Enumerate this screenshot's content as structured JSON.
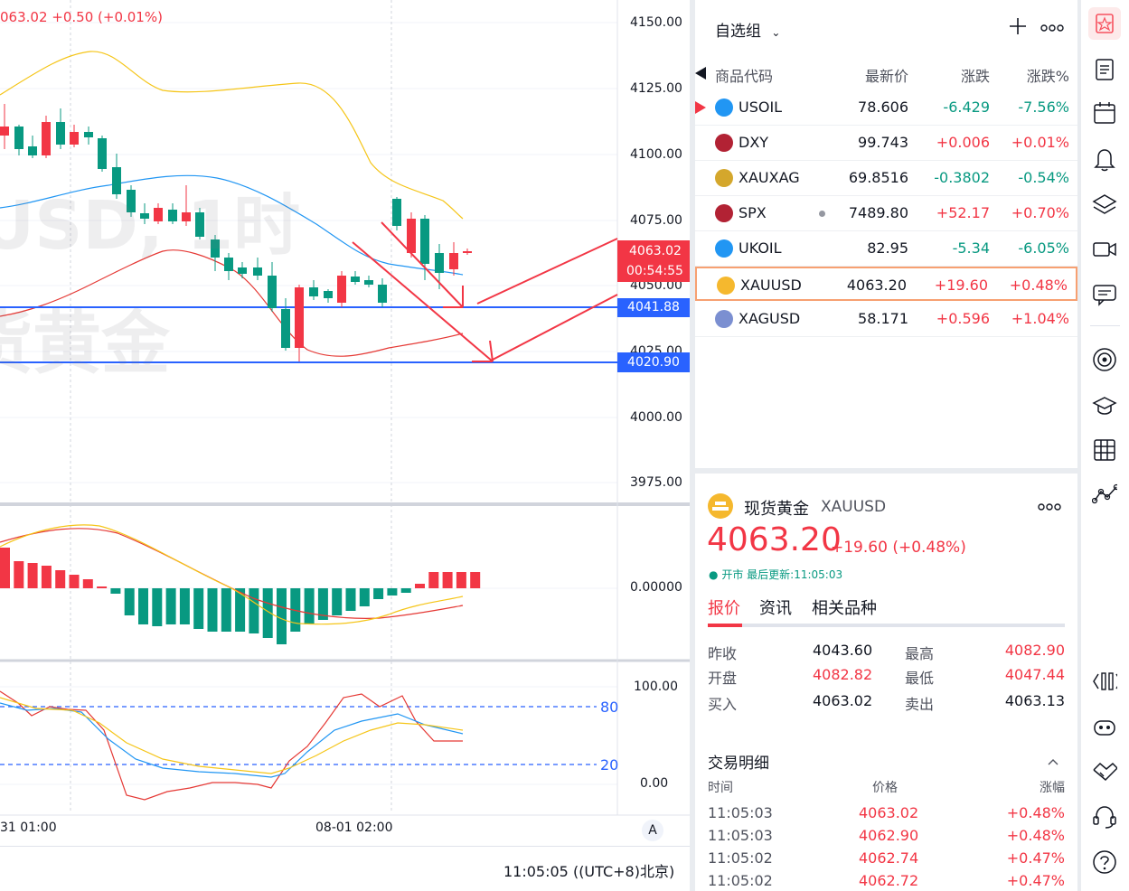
{
  "chart": {
    "header_price": "063.02",
    "header_change": "+0.50",
    "header_change_pct": "(+0.01%)",
    "watermark_symbol": "USD, 1时",
    "watermark_name": "货黄金",
    "price_axis": [
      "4150.00",
      "4125.00",
      "4100.00",
      "4075.00",
      "4050.00",
      "4025.00",
      "4000.00",
      "3975.00"
    ],
    "current_price_label": "4063.02",
    "countdown_label": "00:54:55",
    "level_1": "4041.88",
    "level_2": "4020.90",
    "macd_axis": "0.00000",
    "kdj_axis_top": "100.00",
    "kdj_axis_bottom": "0.00",
    "kdj_level_80": "80",
    "kdj_level_20": "20",
    "time_axis": [
      "31 01:00",
      "08-01 02:00"
    ],
    "auto_scale_button": "A",
    "clock": "11:05:05 ((UTC+8)北京)",
    "colors": {
      "up": "#f23645",
      "down": "#089981",
      "level_line": "#2962ff",
      "annotation": "#f23645",
      "bb_upper": "#f5c518",
      "bb_mid": "#2196f3",
      "bb_lower": "#e53935"
    }
  },
  "watchlist": {
    "title": "自选组",
    "add_icon": "plus-icon",
    "more_icon": "more-icon",
    "columns": {
      "symbol": "商品代码",
      "last": "最新价",
      "change": "涨跌",
      "change_pct": "涨跌%"
    },
    "rows": [
      {
        "symbol": "USOIL",
        "last": "78.606",
        "change": "-6.429",
        "change_pct": "-7.56%",
        "dir": "down",
        "icon": "oil-icon",
        "flag": true
      },
      {
        "symbol": "DXY",
        "last": "99.743",
        "change": "+0.006",
        "change_pct": "+0.01%",
        "dir": "up",
        "icon": "us-flag-icon"
      },
      {
        "symbol": "XAUXAG",
        "last": "69.8516",
        "change": "-0.3802",
        "change_pct": "-0.54%",
        "dir": "down",
        "icon": "gold-silver-icon"
      },
      {
        "symbol": "SPX",
        "last": "7489.80",
        "change": "+52.17",
        "change_pct": "+0.70%",
        "dir": "up",
        "icon": "us-flag-icon",
        "dot": true
      },
      {
        "symbol": "UKOIL",
        "last": "82.95",
        "change": "-5.34",
        "change_pct": "-6.05%",
        "dir": "down",
        "icon": "oil-icon"
      },
      {
        "symbol": "XAUUSD",
        "last": "4063.20",
        "change": "+19.60",
        "change_pct": "+0.48%",
        "dir": "up",
        "icon": "gold-icon",
        "selected": true
      },
      {
        "symbol": "XAGUSD",
        "last": "58.171",
        "change": "+0.596",
        "change_pct": "+1.04%",
        "dir": "up",
        "icon": "silver-icon"
      }
    ]
  },
  "detail": {
    "name": "现货黄金",
    "symbol": "XAUUSD",
    "price": "4063.20",
    "change": "+19.60",
    "change_pct": "(+0.48%)",
    "status": "开市",
    "updated": "最后更新:11:05:03",
    "tabs": [
      "报价",
      "资讯",
      "相关品种"
    ],
    "stats": {
      "prev_close_label": "昨收",
      "prev_close": "4043.60",
      "open_label": "开盘",
      "open": "4082.82",
      "bid_label": "买入",
      "bid": "4063.02",
      "high_label": "最高",
      "high": "4082.90",
      "low_label": "最低",
      "low": "4047.44",
      "ask_label": "卖出",
      "ask": "4063.13"
    },
    "trades_title": "交易明细",
    "trades_columns": {
      "time": "时间",
      "price": "价格",
      "change": "涨幅"
    },
    "trades": [
      {
        "time": "11:05:03",
        "price": "4063.02",
        "change": "+0.48%"
      },
      {
        "time": "11:05:03",
        "price": "4062.90",
        "change": "+0.48%"
      },
      {
        "time": "11:05:02",
        "price": "4062.74",
        "change": "+0.47%"
      },
      {
        "time": "11:05:02",
        "price": "4062.72",
        "change": "+0.47%"
      }
    ]
  },
  "sidebar": {
    "icons": [
      "watchlist-icon",
      "news-icon",
      "calendar-icon",
      "alert-icon",
      "layers-icon",
      "video-icon",
      "chat-icon",
      "target-icon",
      "education-icon",
      "screener-icon",
      "ideas-icon",
      "code-icon",
      "robot-icon",
      "handshake-icon",
      "support-icon",
      "help-icon"
    ]
  }
}
